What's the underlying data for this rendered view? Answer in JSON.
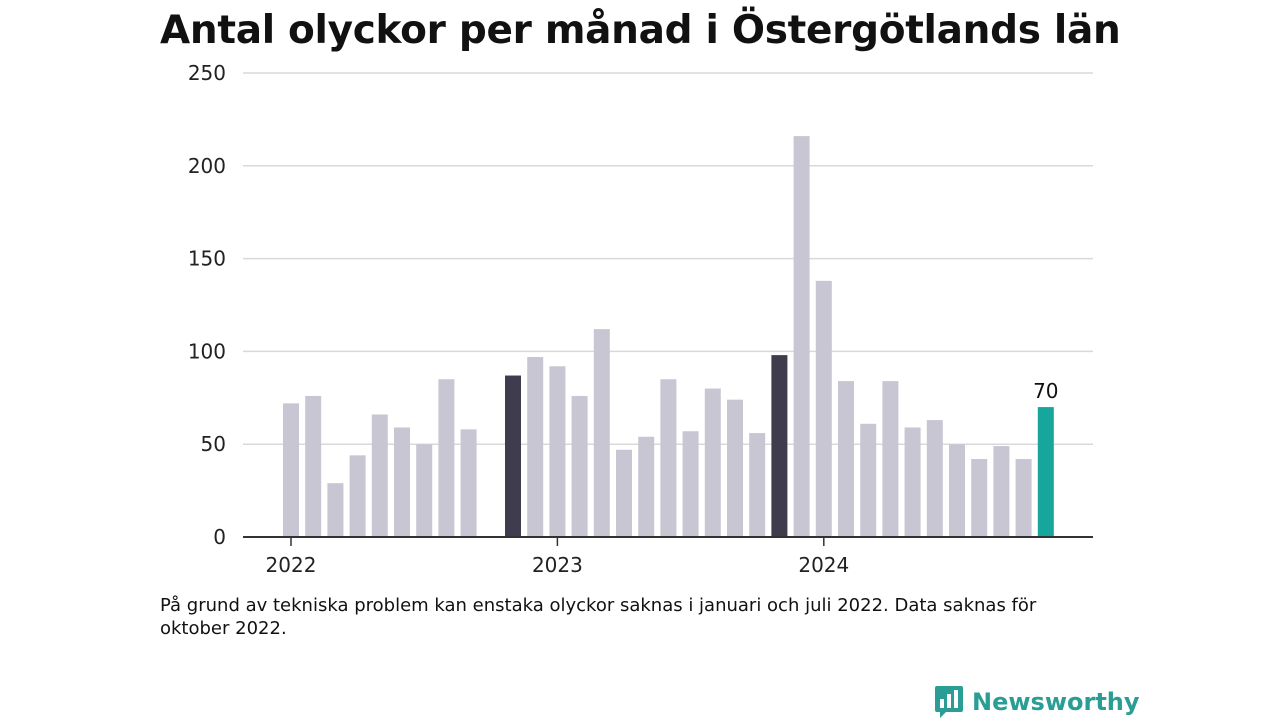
{
  "chart_data": {
    "type": "bar",
    "title": "Antal olyckor per månad i Östergötlands län",
    "ylim": [
      0,
      250
    ],
    "yticks": [
      0,
      50,
      100,
      150,
      200,
      250
    ],
    "xticks": [
      "2022",
      "2023",
      "2024"
    ],
    "categories": [
      "2022-01",
      "2022-02",
      "2022-03",
      "2022-04",
      "2022-05",
      "2022-06",
      "2022-07",
      "2022-08",
      "2022-09",
      "2022-10",
      "2022-11",
      "2022-12",
      "2023-01",
      "2023-02",
      "2023-03",
      "2023-04",
      "2023-05",
      "2023-06",
      "2023-07",
      "2023-08",
      "2023-09",
      "2023-10",
      "2023-11",
      "2023-12",
      "2024-01",
      "2024-02",
      "2024-03",
      "2024-04",
      "2024-05",
      "2024-06",
      "2024-07",
      "2024-08",
      "2024-09",
      "2024-10",
      "2024-11",
      "2024-12"
    ],
    "values": [
      72,
      76,
      29,
      44,
      66,
      59,
      50,
      85,
      58,
      null,
      87,
      97,
      92,
      76,
      112,
      47,
      54,
      85,
      57,
      80,
      74,
      56,
      98,
      216,
      138,
      84,
      61,
      84,
      59,
      63,
      50,
      42,
      49,
      42,
      70,
      null
    ],
    "highlight_dark_indices": [
      10,
      22
    ],
    "highlight_teal_index": 34,
    "data_labels": [
      {
        "index": 34,
        "text": "70"
      }
    ],
    "grid": true,
    "colors": {
      "bar": "#c8c6d2",
      "bar_dark": "#3f3c4d",
      "bar_highlight": "#16a69c",
      "grid": "#d9d9d9",
      "axis": "#333333",
      "text": "#222222"
    }
  },
  "note": "På grund av tekniska problem kan enstaka olyckor saknas i januari och juli 2022. Data saknas för oktober 2022.",
  "brand": {
    "name": "Newsworthy",
    "icon": "bar-chart-speech-bubble-icon",
    "color": "#2a9d94"
  }
}
